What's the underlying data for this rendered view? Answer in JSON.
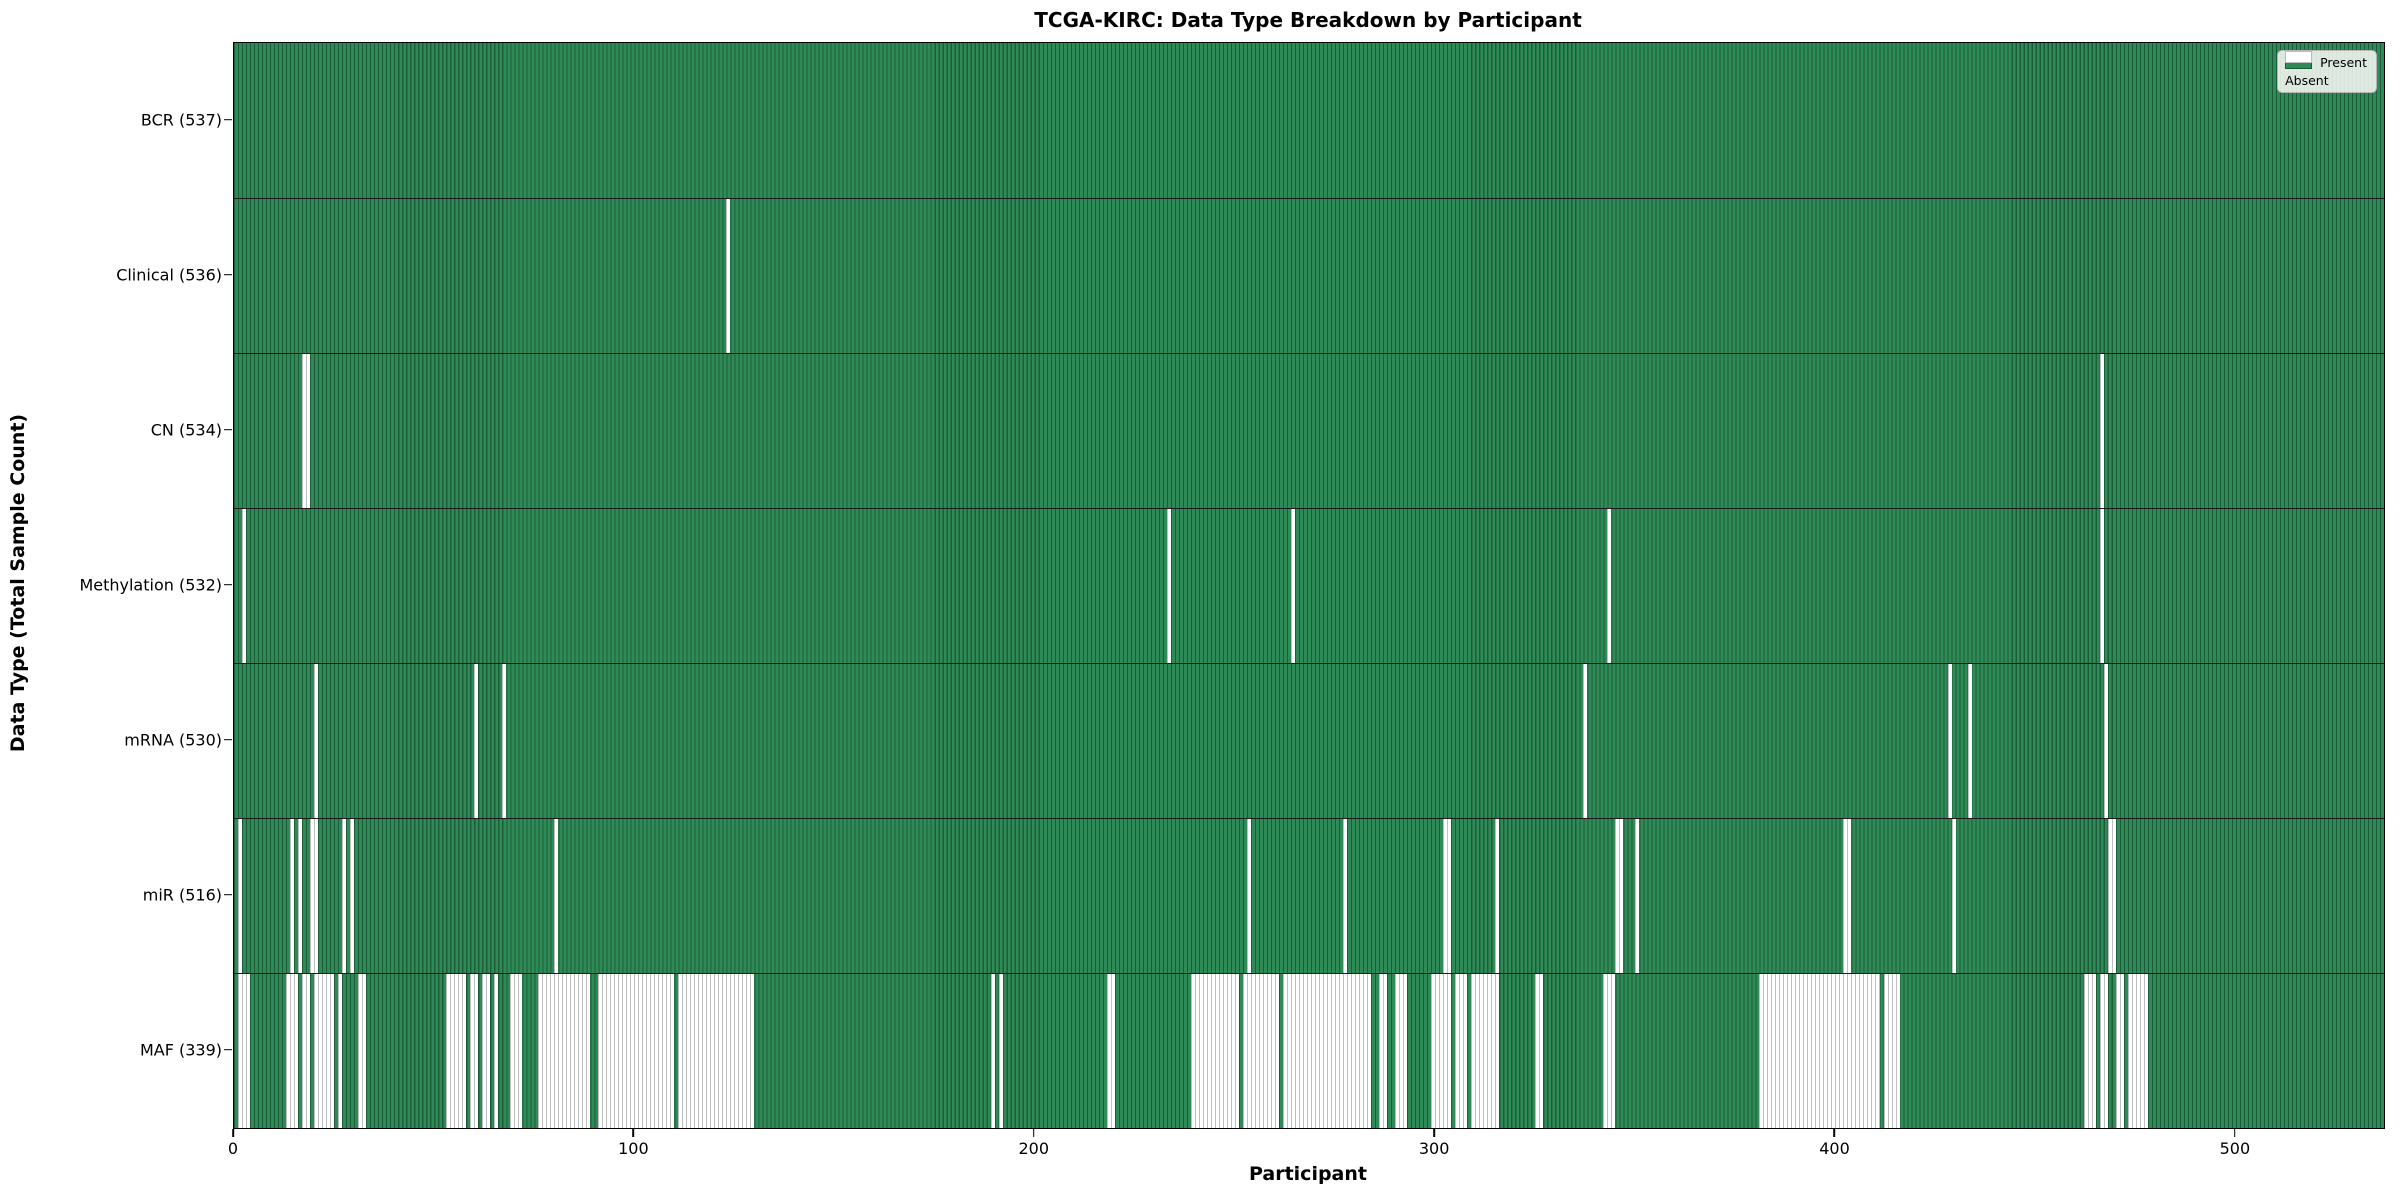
{
  "chart_data": {
    "type": "heatmap",
    "subtype": "presence-absence matrix (one vertical bar per participant per data type)",
    "title": "TCGA-KIRC: Data Type Breakdown by Participant",
    "xlabel": "Participant",
    "ylabel": "Data Type (Total Sample Count)",
    "xlim": [
      0,
      537
    ],
    "xticks": [
      0,
      100,
      200,
      300,
      400,
      500
    ],
    "n_participants": 537,
    "grid": false,
    "legend_position": "upper right",
    "legend_labels": {
      "present": "Present",
      "absent": "Absent"
    },
    "colors": {
      "present": "#2e8b57",
      "present_edge": "#1d5c39",
      "absent": "#ffffff",
      "absent_edge": "#bfbfbf"
    },
    "rows": [
      {
        "data_type": "BCR",
        "label": "BCR (537)",
        "present_count": 537,
        "absent_participants": []
      },
      {
        "data_type": "Clinical",
        "label": "Clinical (536)",
        "present_count": 536,
        "absent_participants": [
          123
        ]
      },
      {
        "data_type": "CN",
        "label": "CN (534)",
        "present_count": 534,
        "absent_participants": [
          17,
          18,
          466
        ]
      },
      {
        "data_type": "Methylation",
        "label": "Methylation (532)",
        "present_count": 532,
        "absent_participants": [
          2,
          233,
          264,
          343,
          466
        ]
      },
      {
        "data_type": "mRNA",
        "label": "mRNA (530)",
        "present_count": 530,
        "absent_participants": [
          20,
          60,
          67,
          337,
          428,
          433,
          467
        ]
      },
      {
        "data_type": "miR",
        "label": "miR (516)",
        "present_count": 516,
        "absent_participants": [
          1,
          14,
          16,
          19,
          20,
          27,
          29,
          80,
          253,
          277,
          302,
          303,
          315,
          345,
          346,
          350,
          402,
          403,
          429,
          468,
          469
        ]
      },
      {
        "data_type": "MAF",
        "label": "MAF (339)",
        "present_count": 339,
        "absent_participants": [
          1,
          2,
          3,
          13,
          14,
          15,
          17,
          18,
          20,
          21,
          22,
          23,
          24,
          26,
          31,
          32,
          53,
          54,
          55,
          56,
          57,
          59,
          60,
          62,
          63,
          65,
          69,
          70,
          71,
          76,
          77,
          78,
          79,
          80,
          81,
          82,
          83,
          84,
          85,
          86,
          87,
          88,
          91,
          92,
          93,
          94,
          95,
          96,
          97,
          98,
          99,
          100,
          101,
          102,
          103,
          104,
          105,
          106,
          107,
          108,
          109,
          111,
          112,
          113,
          114,
          115,
          116,
          117,
          118,
          119,
          120,
          121,
          122,
          123,
          124,
          125,
          126,
          127,
          128,
          129,
          189,
          191,
          218,
          219,
          239,
          240,
          241,
          242,
          243,
          244,
          245,
          246,
          247,
          248,
          249,
          250,
          252,
          253,
          254,
          255,
          256,
          257,
          258,
          259,
          260,
          262,
          263,
          264,
          265,
          266,
          267,
          268,
          269,
          270,
          271,
          272,
          273,
          274,
          275,
          276,
          277,
          278,
          279,
          280,
          281,
          282,
          283,
          286,
          287,
          290,
          291,
          292,
          299,
          300,
          301,
          302,
          303,
          305,
          306,
          307,
          309,
          310,
          311,
          312,
          313,
          314,
          315,
          325,
          326,
          342,
          343,
          344,
          381,
          382,
          383,
          384,
          385,
          386,
          387,
          388,
          389,
          390,
          391,
          392,
          393,
          394,
          395,
          396,
          397,
          398,
          399,
          400,
          401,
          402,
          403,
          404,
          405,
          406,
          407,
          408,
          409,
          410,
          412,
          413,
          414,
          415,
          462,
          463,
          464,
          466,
          467,
          470,
          471,
          473,
          474,
          475,
          476,
          477
        ]
      }
    ]
  }
}
